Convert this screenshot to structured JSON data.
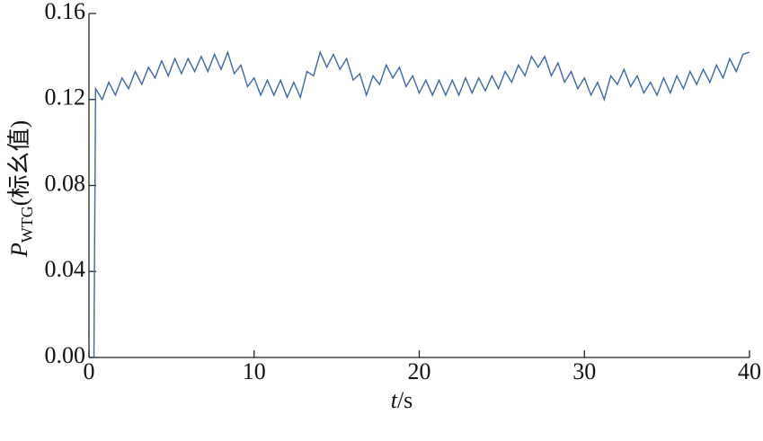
{
  "chart_data": {
    "type": "line",
    "ylabel": {
      "main": "P",
      "sub": "WTG",
      "unit": "(标幺值)"
    },
    "xlabel": {
      "var": "t",
      "unit": "/s"
    },
    "color": "#3b67a8",
    "xlim": [
      0,
      40
    ],
    "xticks": [
      0,
      10,
      20,
      30,
      40
    ],
    "ylim": [
      0,
      0.16
    ],
    "yticks": [
      {
        "value": 0,
        "label": "0.00"
      },
      0.04,
      0.08,
      0.12,
      0.16
    ],
    "x": [
      0.3,
      0.4,
      0.8,
      1.2,
      1.6,
      2.0,
      2.4,
      2.8,
      3.2,
      3.6,
      4.0,
      4.4,
      4.8,
      5.2,
      5.6,
      6.0,
      6.4,
      6.8,
      7.2,
      7.6,
      8.0,
      8.4,
      8.8,
      9.2,
      9.6,
      10.0,
      10.4,
      10.8,
      11.2,
      11.6,
      12.0,
      12.4,
      12.8,
      13.2,
      13.6,
      14.0,
      14.4,
      14.8,
      15.2,
      15.6,
      16.0,
      16.4,
      16.8,
      17.2,
      17.6,
      18.0,
      18.4,
      18.8,
      19.2,
      19.6,
      20.0,
      20.4,
      20.8,
      21.2,
      21.6,
      22.0,
      22.4,
      22.8,
      23.2,
      23.6,
      24.0,
      24.4,
      24.8,
      25.2,
      25.6,
      26.0,
      26.4,
      26.8,
      27.2,
      27.6,
      28.0,
      28.4,
      28.8,
      29.2,
      29.6,
      30.0,
      30.4,
      30.8,
      31.2,
      31.6,
      32.0,
      32.4,
      32.8,
      33.2,
      33.6,
      34.0,
      34.4,
      34.8,
      35.2,
      35.6,
      36.0,
      36.4,
      36.8,
      37.2,
      37.6,
      38.0,
      38.4,
      38.8,
      39.2,
      39.6,
      40.0
    ],
    "values": [
      0,
      0.125,
      0.12,
      0.128,
      0.122,
      0.13,
      0.125,
      0.133,
      0.127,
      0.135,
      0.13,
      0.138,
      0.131,
      0.139,
      0.132,
      0.139,
      0.133,
      0.14,
      0.133,
      0.141,
      0.134,
      0.142,
      0.132,
      0.136,
      0.126,
      0.13,
      0.122,
      0.129,
      0.122,
      0.129,
      0.121,
      0.128,
      0.121,
      0.133,
      0.131,
      0.142,
      0.135,
      0.141,
      0.134,
      0.139,
      0.129,
      0.132,
      0.122,
      0.131,
      0.127,
      0.136,
      0.13,
      0.135,
      0.126,
      0.131,
      0.123,
      0.129,
      0.122,
      0.129,
      0.122,
      0.129,
      0.122,
      0.13,
      0.123,
      0.13,
      0.124,
      0.131,
      0.125,
      0.133,
      0.128,
      0.136,
      0.131,
      0.14,
      0.135,
      0.14,
      0.131,
      0.137,
      0.128,
      0.133,
      0.125,
      0.13,
      0.122,
      0.128,
      0.12,
      0.131,
      0.127,
      0.134,
      0.126,
      0.131,
      0.123,
      0.128,
      0.122,
      0.13,
      0.123,
      0.131,
      0.125,
      0.133,
      0.127,
      0.134,
      0.128,
      0.136,
      0.13,
      0.139,
      0.133,
      0.141,
      0.142
    ]
  }
}
